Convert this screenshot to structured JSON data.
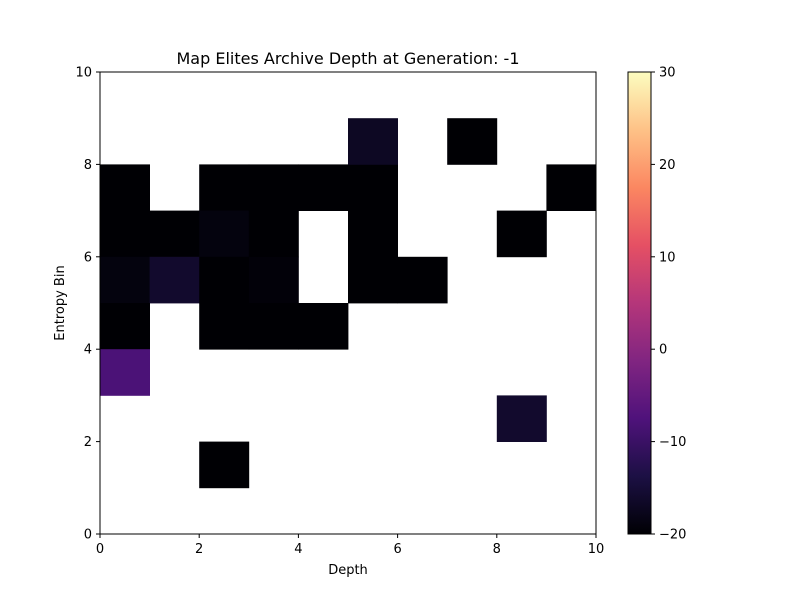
{
  "chart_data": {
    "type": "heatmap",
    "title": "Map Elites Archive Depth at Generation: -1",
    "xlabel": "Depth",
    "ylabel": "Entropy Bin",
    "xlim": [
      0,
      10
    ],
    "ylim": [
      0,
      10
    ],
    "xticks": [
      "0",
      "2",
      "4",
      "6",
      "8",
      "10"
    ],
    "yticks": [
      "0",
      "2",
      "4",
      "6",
      "8",
      "10"
    ],
    "colormap": "magma",
    "colorbar": {
      "vmin": -20,
      "vmax": 30,
      "ticks": [
        "30",
        "20",
        "10",
        "0",
        "−10",
        "−20"
      ]
    },
    "cells": [
      {
        "x": 0,
        "y": 7,
        "value": -20
      },
      {
        "x": 2,
        "y": 7,
        "value": -20
      },
      {
        "x": 3,
        "y": 7,
        "value": -20
      },
      {
        "x": 4,
        "y": 7,
        "value": -20
      },
      {
        "x": 5,
        "y": 7,
        "value": -20
      },
      {
        "x": 9,
        "y": 7,
        "value": -20
      },
      {
        "x": 5,
        "y": 8,
        "value": -17
      },
      {
        "x": 7,
        "y": 8,
        "value": -20
      },
      {
        "x": 0,
        "y": 6,
        "value": -20
      },
      {
        "x": 1,
        "y": 6,
        "value": -20
      },
      {
        "x": 2,
        "y": 6,
        "value": -19
      },
      {
        "x": 3,
        "y": 6,
        "value": -20
      },
      {
        "x": 5,
        "y": 6,
        "value": -20
      },
      {
        "x": 8,
        "y": 6,
        "value": -20
      },
      {
        "x": 0,
        "y": 5,
        "value": -19
      },
      {
        "x": 1,
        "y": 5,
        "value": -16
      },
      {
        "x": 2,
        "y": 5,
        "value": -20
      },
      {
        "x": 3,
        "y": 5,
        "value": -19.5
      },
      {
        "x": 5,
        "y": 5,
        "value": -20
      },
      {
        "x": 6,
        "y": 5,
        "value": -20
      },
      {
        "x": 0,
        "y": 4,
        "value": -20
      },
      {
        "x": 2,
        "y": 4,
        "value": -20
      },
      {
        "x": 3,
        "y": 4,
        "value": -20
      },
      {
        "x": 4,
        "y": 4,
        "value": -20
      },
      {
        "x": 0,
        "y": 3,
        "value": -8
      },
      {
        "x": 8,
        "y": 2,
        "value": -16
      },
      {
        "x": 2,
        "y": 1,
        "value": -20
      }
    ]
  }
}
